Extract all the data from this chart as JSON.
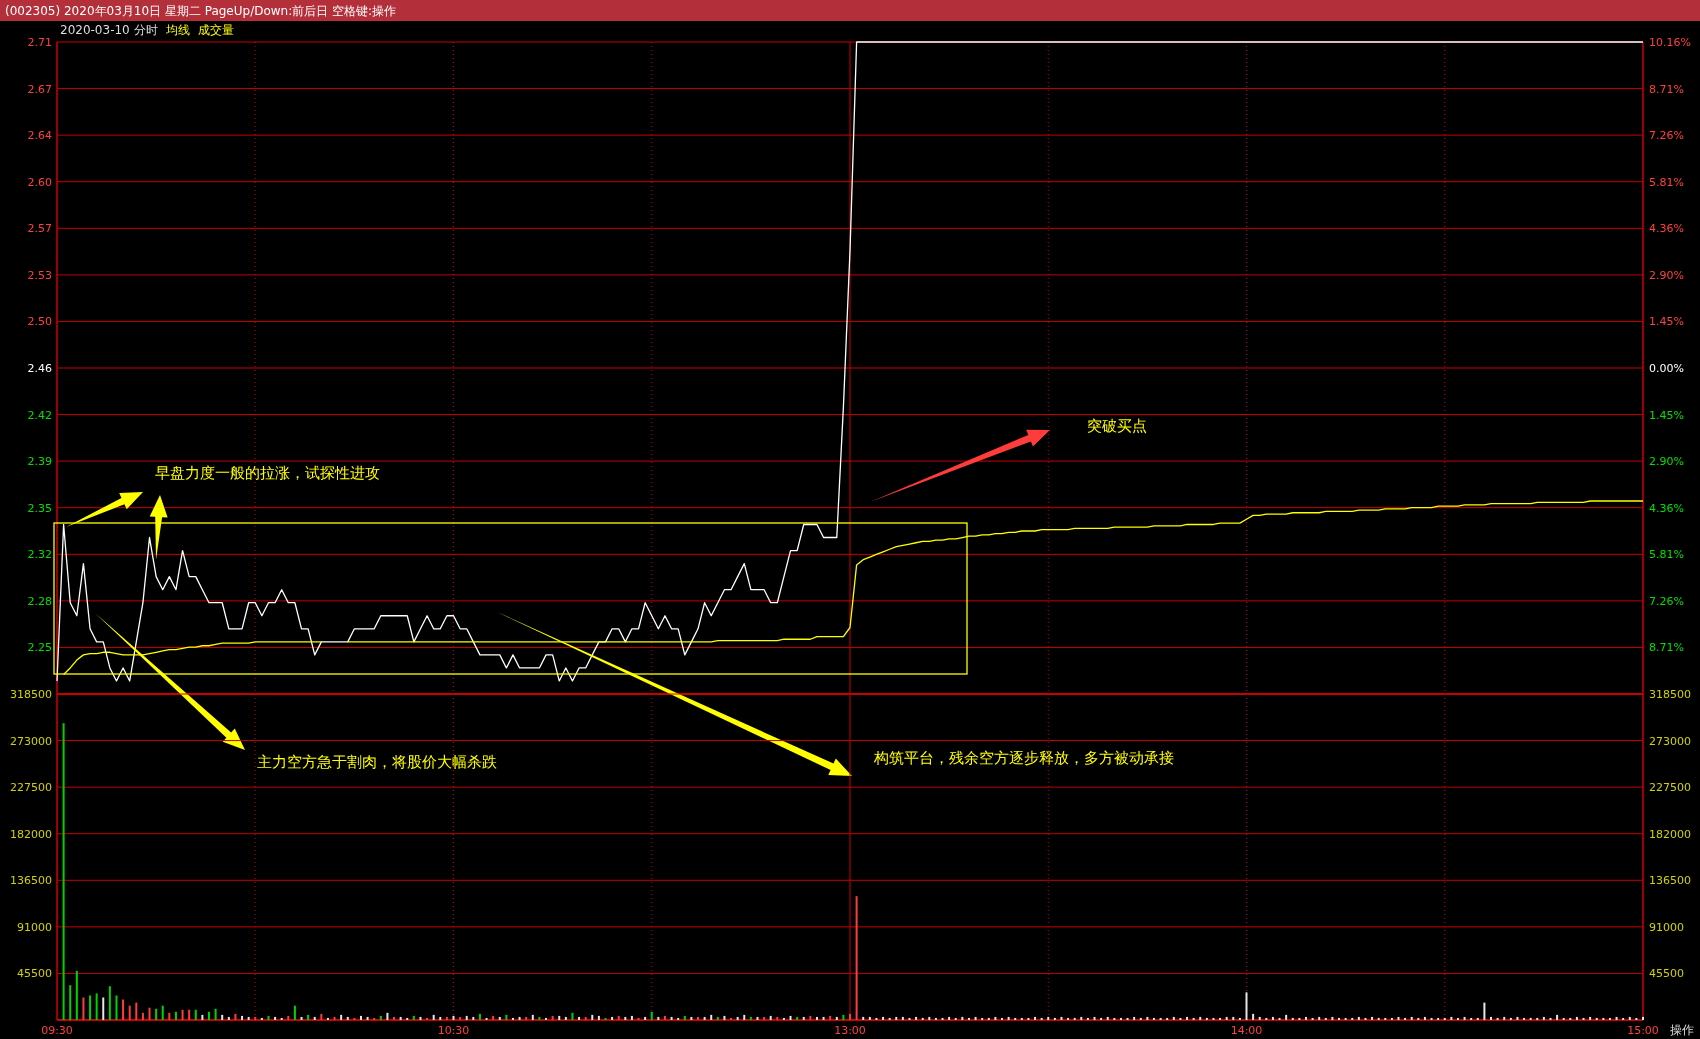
{
  "chart_data": [
    {
      "type": "line",
      "title": "(002305) 2020年03月10日 星期二 PageUp/Down:前后日 空格键:操作",
      "subtitle": "2020-03-10 分时",
      "categories": [
        null,
        null,
        null,
        null,
        null,
        null,
        null,
        null,
        null,
        null,
        null,
        null,
        null,
        null,
        null,
        null,
        null,
        null,
        null,
        null,
        null,
        null,
        null,
        null,
        null,
        null,
        null,
        null,
        null,
        null,
        null,
        null,
        null,
        null,
        null,
        null,
        null,
        null,
        null,
        null,
        null,
        null,
        null,
        null,
        null,
        null,
        null,
        null,
        null,
        null,
        null,
        null,
        null,
        null,
        null,
        null,
        null,
        null,
        null,
        null,
        null,
        null,
        null,
        null,
        null,
        null,
        null,
        null,
        null,
        null,
        null,
        null,
        null,
        null,
        null,
        null,
        null,
        null,
        null,
        null,
        null,
        null,
        null,
        null,
        null,
        null,
        null,
        null,
        null,
        null,
        null,
        null,
        null,
        null,
        null,
        null,
        null,
        null,
        null,
        null,
        null,
        null,
        null,
        null,
        null,
        null,
        null,
        null,
        null,
        null,
        null,
        null,
        null,
        null,
        null,
        null,
        null,
        null,
        null,
        null,
        null,
        null,
        null,
        null,
        null,
        null,
        null,
        null,
        null,
        null,
        null,
        null,
        null,
        null,
        null,
        null,
        null,
        null,
        null,
        null,
        null,
        null,
        null,
        null,
        null,
        null,
        null,
        null,
        null,
        null,
        null,
        null,
        null,
        null,
        null,
        null,
        null,
        null,
        null,
        null,
        null,
        null,
        null,
        null,
        null,
        null,
        null,
        null,
        null,
        null,
        null,
        null,
        null,
        null,
        null,
        null,
        null,
        null,
        null,
        null,
        null,
        null,
        null,
        null,
        null,
        null,
        null,
        null,
        null,
        null,
        null,
        null,
        null,
        null,
        null,
        null,
        null,
        null,
        null,
        null,
        null,
        null,
        null,
        null,
        null,
        null,
        null,
        null,
        null,
        null,
        null,
        null,
        null,
        null,
        null,
        null,
        null,
        null,
        null,
        null,
        null,
        null,
        null,
        null,
        null,
        null,
        null,
        null,
        null,
        null,
        null,
        null,
        null,
        null,
        null,
        null,
        null,
        null,
        null,
        null,
        null
      ],
      "ylim": [
        2.21,
        2.71
      ],
      "yticks": [
        {
          "value": 2.71,
          "label": "2.71"
        },
        {
          "value": 2.6743,
          "label": "2.67"
        },
        {
          "value": 2.6386,
          "label": "2.64"
        },
        {
          "value": 2.6029,
          "label": "2.60"
        },
        {
          "value": 2.5671,
          "label": "2.57"
        },
        {
          "value": 2.5314,
          "label": "2.53"
        },
        {
          "value": 2.4957,
          "label": "2.50"
        },
        {
          "value": 2.46,
          "label": "2.46"
        },
        {
          "value": 2.4243,
          "label": "2.42"
        },
        {
          "value": 2.3886,
          "label": "2.39"
        },
        {
          "value": 2.3529,
          "label": "2.35"
        },
        {
          "value": 2.3171,
          "label": "2.32"
        },
        {
          "value": 2.2814,
          "label": "2.28"
        },
        {
          "value": 2.2457,
          "label": "2.25"
        }
      ],
      "y2lim": [
        -10.16,
        10.16
      ],
      "y2ticks": [
        {
          "value": 10.16,
          "label": "10.16%"
        },
        {
          "value": 8.71,
          "label": "8.71%"
        },
        {
          "value": 7.26,
          "label": "7.26%"
        },
        {
          "value": 5.81,
          "label": "5.81%"
        },
        {
          "value": 4.36,
          "label": "4.36%"
        },
        {
          "value": 2.9,
          "label": "2.90%"
        },
        {
          "value": 1.45,
          "label": "1.45%"
        },
        {
          "value": 0,
          "label": "0.00%"
        },
        {
          "value": -1.45,
          "label": "1.45%"
        },
        {
          "value": -2.9,
          "label": "2.90%"
        },
        {
          "value": -4.36,
          "label": "4.36%"
        },
        {
          "value": -5.81,
          "label": "5.81%"
        },
        {
          "value": -7.26,
          "label": "7.26%"
        },
        {
          "value": -8.71,
          "label": "8.71%"
        }
      ],
      "grid": true,
      "legend": "top left",
      "tick_labels": "y",
      "series": [
        {
          "color": "#ffffff",
          "values": [
            2.22,
            2.34,
            2.28,
            2.27,
            2.31,
            2.26,
            2.25,
            2.25,
            2.23,
            2.22,
            2.23,
            2.22,
            2.25,
            2.28,
            2.33,
            2.3,
            2.29,
            2.3,
            2.29,
            2.32,
            2.3,
            2.3,
            2.29,
            2.28,
            2.28,
            2.28,
            2.26,
            2.26,
            2.26,
            2.28,
            2.28,
            2.27,
            2.28,
            2.28,
            2.29,
            2.28,
            2.28,
            2.26,
            2.26,
            2.24,
            2.25,
            2.25,
            2.25,
            2.25,
            2.25,
            2.26,
            2.26,
            2.26,
            2.26,
            2.27,
            2.27,
            2.27,
            2.27,
            2.27,
            2.25,
            2.26,
            2.27,
            2.26,
            2.26,
            2.27,
            2.27,
            2.26,
            2.26,
            2.25,
            2.24,
            2.24,
            2.24,
            2.24,
            2.23,
            2.24,
            2.23,
            2.23,
            2.23,
            2.23,
            2.24,
            2.24,
            2.22,
            2.23,
            2.22,
            2.23,
            2.23,
            2.24,
            2.25,
            2.25,
            2.26,
            2.26,
            2.25,
            2.26,
            2.26,
            2.28,
            2.27,
            2.26,
            2.27,
            2.26,
            2.26,
            2.24,
            2.25,
            2.26,
            2.28,
            2.27,
            2.28,
            2.29,
            2.29,
            2.3,
            2.31,
            2.29,
            2.29,
            2.29,
            2.28,
            2.28,
            2.3,
            2.32,
            2.32,
            2.34,
            2.34,
            2.34,
            2.33,
            2.33,
            2.33,
            2.43,
            2.55,
            2.71,
            2.71,
            2.71,
            2.71,
            2.71,
            2.71,
            2.71,
            2.71,
            2.71,
            2.71,
            2.71,
            2.71,
            2.71,
            2.71,
            2.71,
            2.71,
            2.71,
            2.71,
            2.71,
            2.71,
            2.71,
            2.71,
            2.71,
            2.71,
            2.71,
            2.71,
            2.71,
            2.71,
            2.71,
            2.71,
            2.71,
            2.71,
            2.71,
            2.71,
            2.71,
            2.71,
            2.71,
            2.71,
            2.71,
            2.71,
            2.71,
            2.71,
            2.71,
            2.71,
            2.71,
            2.71,
            2.71,
            2.71,
            2.71,
            2.71,
            2.71,
            2.71,
            2.71,
            2.71,
            2.71,
            2.71,
            2.71,
            2.71,
            2.71,
            2.71,
            2.71,
            2.71,
            2.71,
            2.71,
            2.71,
            2.71,
            2.71,
            2.71,
            2.71,
            2.71,
            2.71,
            2.71,
            2.71,
            2.71,
            2.71,
            2.71,
            2.71,
            2.71,
            2.71,
            2.71,
            2.71,
            2.71,
            2.71,
            2.71,
            2.71,
            2.71,
            2.71,
            2.71,
            2.71,
            2.71,
            2.71,
            2.71,
            2.71,
            2.71,
            2.71,
            2.71,
            2.71,
            2.71,
            2.71,
            2.71,
            2.71,
            2.71,
            2.71,
            2.71,
            2.71,
            2.71,
            2.71,
            2.71,
            2.71,
            2.71,
            2.71,
            2.71,
            2.71,
            2.71,
            2.71,
            2.71,
            2.71,
            2.71,
            2.71,
            2.71
          ]
        },
        {
          "name": "均线",
          "color": "#ffff00",
          "values": [
            null,
            2.225,
            2.23,
            2.236,
            2.24,
            2.241,
            2.241,
            2.242,
            2.242,
            2.241,
            2.24,
            2.24,
            2.24,
            2.24,
            2.241,
            2.242,
            2.243,
            2.244,
            2.244,
            2.245,
            2.246,
            2.246,
            2.247,
            2.247,
            2.248,
            2.249,
            2.249,
            2.249,
            2.249,
            2.249,
            2.25,
            2.25,
            2.25,
            2.25,
            2.25,
            2.25,
            2.25,
            2.25,
            2.25,
            2.25,
            2.25,
            null,
            null,
            null,
            2.25,
            2.25,
            2.25,
            2.25,
            2.25,
            2.25,
            2.25,
            2.25,
            2.25,
            2.25,
            2.25,
            2.25,
            2.25,
            2.25,
            2.25,
            2.25,
            2.25,
            2.25,
            2.25,
            2.25,
            2.25,
            2.25,
            2.25,
            2.25,
            2.25,
            2.25,
            2.25,
            2.25,
            2.25,
            2.25,
            2.25,
            2.25,
            2.25,
            2.25,
            2.25,
            2.25,
            2.25,
            2.25,
            2.25,
            2.25,
            2.25,
            2.25,
            2.25,
            2.25,
            2.25,
            2.25,
            2.25,
            2.25,
            2.25,
            2.25,
            2.25,
            2.25,
            2.25,
            2.25,
            2.25,
            2.25,
            2.251,
            2.251,
            2.251,
            2.251,
            2.251,
            2.251,
            2.251,
            2.251,
            2.251,
            2.251,
            2.252,
            2.252,
            2.252,
            2.252,
            2.252,
            2.254,
            2.254,
            2.254,
            2.254,
            2.254,
            2.261,
            2.309,
            2.313,
            2.315,
            2.317,
            2.319,
            2.321,
            2.323,
            2.324,
            2.325,
            2.326,
            2.327,
            2.327,
            2.328,
            2.328,
            2.329,
            2.329,
            2.33,
            2.331,
            2.331,
            2.332,
            2.332,
            2.333,
            2.333,
            2.334,
            2.334,
            2.335,
            2.335,
            2.335,
            2.336,
            2.336,
            2.336,
            2.336,
            2.336,
            2.337,
            2.337,
            2.337,
            2.337,
            2.337,
            2.337,
            2.338,
            2.338,
            2.338,
            2.338,
            2.338,
            2.338,
            2.339,
            2.339,
            2.339,
            2.339,
            2.339,
            2.34,
            2.34,
            2.34,
            2.34,
            2.34,
            2.341,
            2.341,
            2.341,
            2.341,
            2.344,
            2.347,
            2.347,
            2.348,
            2.348,
            2.348,
            2.348,
            2.349,
            2.349,
            2.349,
            2.349,
            2.349,
            2.35,
            2.35,
            2.35,
            2.35,
            2.35,
            2.351,
            2.351,
            2.351,
            2.351,
            2.352,
            2.352,
            2.352,
            2.352,
            2.353,
            2.353,
            2.353,
            2.353,
            2.354,
            2.354,
            2.354,
            2.354,
            2.355,
            2.355,
            2.355,
            2.355,
            2.356,
            2.356,
            2.356,
            2.356,
            2.356,
            2.356,
            2.356,
            2.357,
            2.357,
            2.357,
            2.357,
            2.357,
            2.357,
            2.357,
            2.357,
            2.358,
            2.358,
            2.358,
            2.358,
            2.358,
            2.358,
            2.358,
            2.358,
            2.358
          ]
        }
      ],
      "annotations": [
        "早盘力度一般的拉涨，试探性进攻",
        "主力空方急于割肉，将股价大幅杀跌",
        "构筑平台，残余空方逐步释放，多方被动承接",
        "突破买点"
      ]
    },
    {
      "type": "bar",
      "categories": [
        "09:30",
        null,
        null,
        null,
        null,
        null,
        null,
        null,
        null,
        null,
        null,
        null,
        null,
        null,
        null,
        null,
        null,
        null,
        null,
        null,
        null,
        null,
        null,
        null,
        null,
        null,
        null,
        null,
        null,
        null,
        null,
        null,
        null,
        null,
        null,
        null,
        null,
        null,
        null,
        null,
        null,
        null,
        null,
        null,
        null,
        null,
        null,
        null,
        null,
        null,
        null,
        null,
        null,
        null,
        null,
        null,
        null,
        null,
        null,
        null,
        "10:30",
        null,
        null,
        null,
        null,
        null,
        null,
        null,
        null,
        null,
        null,
        null,
        null,
        null,
        null,
        null,
        null,
        null,
        null,
        null,
        null,
        null,
        null,
        null,
        null,
        null,
        null,
        null,
        null,
        null,
        null,
        null,
        null,
        null,
        null,
        null,
        null,
        null,
        null,
        null,
        null,
        null,
        null,
        null,
        null,
        null,
        null,
        null,
        null,
        null,
        null,
        null,
        null,
        null,
        null,
        null,
        null,
        null,
        null,
        null,
        "13:00",
        null,
        null,
        null,
        null,
        null,
        null,
        null,
        null,
        null,
        null,
        null,
        null,
        null,
        null,
        null,
        null,
        null,
        null,
        null,
        null,
        null,
        null,
        null,
        null,
        null,
        null,
        null,
        null,
        null,
        null,
        null,
        null,
        null,
        null,
        null,
        null,
        null,
        null,
        null,
        null,
        null,
        null,
        null,
        null,
        null,
        null,
        null,
        null,
        null,
        null,
        null,
        null,
        null,
        null,
        null,
        null,
        null,
        null,
        null,
        "14:00",
        null,
        null,
        null,
        null,
        null,
        null,
        null,
        null,
        null,
        null,
        null,
        null,
        null,
        null,
        null,
        null,
        null,
        null,
        null,
        null,
        null,
        null,
        null,
        null,
        null,
        null,
        null,
        null,
        null,
        null,
        null,
        null,
        null,
        null,
        null,
        null,
        null,
        null,
        null,
        null,
        null,
        null,
        null,
        null,
        null,
        null,
        null,
        null,
        null,
        null,
        null,
        null,
        null,
        null,
        null,
        null,
        null,
        null,
        null,
        "15:00"
      ],
      "ylim": [
        0,
        318500
      ],
      "yticks": [
        45500,
        91000,
        136500,
        182000,
        227500,
        273000,
        318500
      ],
      "y2lim": [
        0,
        318500
      ],
      "y2ticks": [
        45500,
        91000,
        136500,
        182000,
        227500,
        273000,
        318500
      ],
      "grid": true,
      "values": [
        null,
        290000,
        34000,
        48000,
        22000,
        24000,
        26000,
        22000,
        33000,
        24000,
        20000,
        14000,
        17000,
        7000,
        12000,
        11000,
        14000,
        7000,
        8000,
        10000,
        10000,
        10000,
        5000,
        8000,
        11000,
        5000,
        3000,
        6000,
        4000,
        3000,
        3000,
        2000,
        4000,
        3000,
        2000,
        4000,
        14000,
        3000,
        5000,
        3000,
        6000,
        2000,
        3000,
        5000,
        3000,
        2000,
        4000,
        3000,
        2000,
        4000,
        7000,
        3000,
        3000,
        2000,
        4000,
        3000,
        2000,
        5000,
        3000,
        3000,
        4000,
        3000,
        4000,
        3000,
        6000,
        2000,
        4000,
        3000,
        5000,
        2000,
        3000,
        3000,
        5000,
        3000,
        2000,
        4000,
        4000,
        3000,
        7000,
        3000,
        3000,
        5000,
        4000,
        2000,
        3000,
        4000,
        3000,
        4000,
        2000,
        3000,
        8000,
        3000,
        4000,
        3000,
        2000,
        4000,
        3000,
        3000,
        3000,
        5000,
        3000,
        4000,
        2000,
        3000,
        5000,
        3000,
        3000,
        3000,
        4000,
        3000,
        2000,
        4000,
        3000,
        3000,
        4000,
        3000,
        3000,
        4000,
        3000,
        5000,
        6000,
        121000,
        3000,
        3000,
        2000,
        3000,
        2000,
        3000,
        3000,
        2000,
        3000,
        2000,
        3000,
        2000,
        2000,
        3000,
        2000,
        3000,
        2000,
        3000,
        2000,
        2000,
        3000,
        2000,
        3000,
        2000,
        2000,
        2000,
        3000,
        2000,
        3000,
        2000,
        3000,
        2000,
        2000,
        3000,
        2000,
        3000,
        2000,
        3000,
        2000,
        2000,
        2000,
        3000,
        2000,
        3000,
        2000,
        2000,
        2000,
        3000,
        2000,
        3000,
        2000,
        3000,
        2000,
        2000,
        2000,
        3000,
        3000,
        2000,
        27000,
        6000,
        3000,
        2000,
        3000,
        2000,
        5000,
        2000,
        2000,
        3000,
        2000,
        3000,
        2000,
        3000,
        2000,
        2000,
        2000,
        3000,
        2000,
        3000,
        2000,
        2000,
        2000,
        3000,
        2000,
        3000,
        2000,
        3000,
        2000,
        2000,
        2000,
        3000,
        2000,
        3000,
        2000,
        2000,
        17000,
        3000,
        2000,
        3000,
        2000,
        3000,
        2000,
        2000,
        2000,
        3000,
        2000,
        5000,
        2000,
        2000,
        3000,
        2000,
        3000,
        2000,
        2000,
        2000,
        3000,
        2000,
        3000,
        2000,
        3000
      ],
      "colors": [
        null,
        "#00d200",
        "#00d200",
        "#00d200",
        "#ff3c3c",
        "#00d200",
        "#00d200",
        "#e6e6e6",
        "#00d200",
        "#00d200",
        "#ff3c3c",
        "#ff3c3c",
        "#ff3c3c",
        "#ff3c3c",
        "#ff3c3c",
        "#00d200",
        "#00d200",
        "#ff3c3c",
        "#00d200",
        "#ff3c3c",
        "#ff3c3c",
        "#00d200",
        "#e6e6e6",
        "#00d200",
        "#00d200",
        "#e6e6e6",
        "#e6e6e6",
        "#ff3c3c",
        "#e6e6e6",
        "#e6e6e6",
        "#ff3c3c",
        "#e6e6e6",
        "#00d200",
        "#e6e6e6",
        "#e6e6e6",
        "#ff3c3c",
        "#00d200",
        "#e6e6e6",
        "#00d200",
        "#e6e6e6",
        "#ff3c3c",
        "#e6e6e6",
        "#ff3c3c",
        "#e6e6e6",
        "#e6e6e6",
        "#ff3c3c",
        "#e6e6e6",
        "#e6e6e6",
        "#ff3c3c",
        "#00d200",
        "#e6e6e6",
        "#ff3c3c",
        "#e6e6e6",
        "#e6e6e6",
        "#00d200",
        "#e6e6e6",
        "#ff3c3c",
        "#e6e6e6",
        "#e6e6e6",
        "#ff3c3c",
        "#e6e6e6",
        "#ff3c3c",
        "#e6e6e6",
        "#e6e6e6",
        "#00d200",
        "#e6e6e6",
        "#ff3c3c",
        "#e6e6e6",
        "#00d200",
        "#e6e6e6",
        "#e6e6e6",
        "#ff3c3c",
        "#e6e6e6",
        "#00d200",
        "#e6e6e6",
        "#ff3c3c",
        "#e6e6e6",
        "#e6e6e6",
        "#00d200",
        "#e6e6e6",
        "#ff3c3c",
        "#e6e6e6",
        "#e6e6e6",
        "#00d200",
        "#e6e6e6",
        "#ff3c3c",
        "#e6e6e6",
        "#e6e6e6",
        "#ff3c3c",
        "#e6e6e6",
        "#00d200",
        "#e6e6e6",
        "#ff3c3c",
        "#e6e6e6",
        "#e6e6e6",
        "#00d200",
        "#e6e6e6",
        "#ff3c3c",
        "#e6e6e6",
        "#e6e6e6",
        "#00d200",
        "#e6e6e6",
        "#ff3c3c",
        "#e6e6e6",
        "#e6e6e6",
        "#00d200",
        "#e6e6e6",
        "#ff3c3c",
        "#e6e6e6",
        "#ff3c3c",
        "#e6e6e6",
        "#e6e6e6",
        "#00d200",
        "#e6e6e6",
        "#ff3c3c",
        "#e6e6e6",
        "#e6e6e6",
        "#ff3c3c",
        "#e6e6e6",
        "#00d200",
        "#ff3c3c",
        "#ff3c3c",
        "#e6e6e6",
        "#e6e6e6",
        "#e6e6e6",
        "#e6e6e6",
        "#e6e6e6",
        "#e6e6e6",
        "#e6e6e6",
        "#e6e6e6",
        "#e6e6e6",
        "#e6e6e6",
        "#e6e6e6",
        "#e6e6e6",
        "#e6e6e6",
        "#e6e6e6",
        "#e6e6e6",
        "#e6e6e6",
        "#e6e6e6",
        "#e6e6e6",
        "#e6e6e6",
        "#e6e6e6",
        "#e6e6e6",
        "#e6e6e6",
        "#e6e6e6",
        "#e6e6e6",
        "#e6e6e6",
        "#e6e6e6",
        "#e6e6e6",
        "#e6e6e6",
        "#e6e6e6",
        "#e6e6e6",
        "#e6e6e6",
        "#e6e6e6",
        "#e6e6e6",
        "#e6e6e6",
        "#e6e6e6",
        "#e6e6e6",
        "#e6e6e6",
        "#e6e6e6",
        "#e6e6e6",
        "#e6e6e6",
        "#e6e6e6",
        "#e6e6e6",
        "#e6e6e6",
        "#e6e6e6",
        "#e6e6e6",
        "#e6e6e6",
        "#e6e6e6",
        "#e6e6e6",
        "#e6e6e6",
        "#e6e6e6",
        "#e6e6e6",
        "#e6e6e6",
        "#e6e6e6",
        "#e6e6e6",
        "#e6e6e6",
        "#e6e6e6",
        "#e6e6e6",
        "#e6e6e6",
        "#e6e6e6",
        "#e6e6e6",
        "#e6e6e6",
        "#e6e6e6",
        "#e6e6e6",
        "#e6e6e6",
        "#e6e6e6",
        "#e6e6e6",
        "#e6e6e6",
        "#e6e6e6",
        "#e6e6e6",
        "#e6e6e6",
        "#e6e6e6",
        "#e6e6e6",
        "#e6e6e6",
        "#e6e6e6",
        "#e6e6e6",
        "#e6e6e6",
        "#e6e6e6",
        "#e6e6e6",
        "#e6e6e6",
        "#e6e6e6",
        "#e6e6e6",
        "#e6e6e6",
        "#e6e6e6",
        "#e6e6e6",
        "#e6e6e6",
        "#e6e6e6",
        "#e6e6e6",
        "#e6e6e6",
        "#e6e6e6",
        "#e6e6e6",
        "#e6e6e6",
        "#e6e6e6",
        "#e6e6e6",
        "#e6e6e6",
        "#e6e6e6",
        "#e6e6e6",
        "#e6e6e6",
        "#e6e6e6",
        "#e6e6e6",
        "#e6e6e6",
        "#e6e6e6",
        "#e6e6e6",
        "#e6e6e6",
        "#e6e6e6",
        "#e6e6e6",
        "#e6e6e6",
        "#e6e6e6",
        "#e6e6e6",
        "#e6e6e6",
        "#e6e6e6",
        "#e6e6e6",
        "#e6e6e6",
        "#e6e6e6",
        "#e6e6e6",
        "#e6e6e6",
        "#e6e6e6",
        "#e6e6e6",
        "#e6e6e6",
        "#e6e6e6"
      ],
      "annotations": [
        "成交量",
        "操作"
      ]
    }
  ]
}
